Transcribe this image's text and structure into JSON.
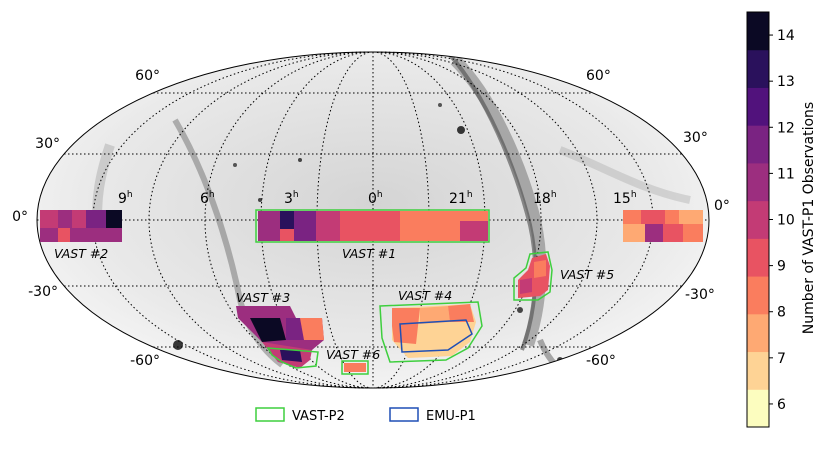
{
  "figure": {
    "lat_labels_left": [
      "60°",
      "30°",
      "0°",
      "-30°",
      "-60°"
    ],
    "lat_labels_right": [
      "60°",
      "30°",
      "0°",
      "-30°",
      "-60°"
    ],
    "ra_labels": [
      {
        "text": "9",
        "sup": "h"
      },
      {
        "text": "6",
        "sup": "h"
      },
      {
        "text": "3",
        "sup": "h"
      },
      {
        "text": "0",
        "sup": "h"
      },
      {
        "text": "21",
        "sup": "h"
      },
      {
        "text": "18",
        "sup": "h"
      },
      {
        "text": "15",
        "sup": "h"
      }
    ],
    "regions": [
      "VAST #1",
      "VAST #2",
      "VAST #3",
      "VAST #4",
      "VAST #5",
      "VAST #6"
    ],
    "legend": [
      {
        "label": "VAST-P2",
        "color": "#3ecf3e"
      },
      {
        "label": "EMU-P1",
        "color": "#1f4fb5"
      }
    ],
    "colorbar": {
      "label": "Number of VAST-P1 Observations",
      "ticks": [
        "6",
        "7",
        "8",
        "9",
        "10",
        "11",
        "12",
        "13",
        "14"
      ],
      "min": 5.5,
      "max": 14.5,
      "colors": [
        "#fcfdbf",
        "#fed395",
        "#fea973",
        "#fa7d5e",
        "#e85362",
        "#c33b75",
        "#9c2e7f",
        "#7a2382",
        "#51127c",
        "#2a115c",
        "#0b0924"
      ]
    }
  }
}
